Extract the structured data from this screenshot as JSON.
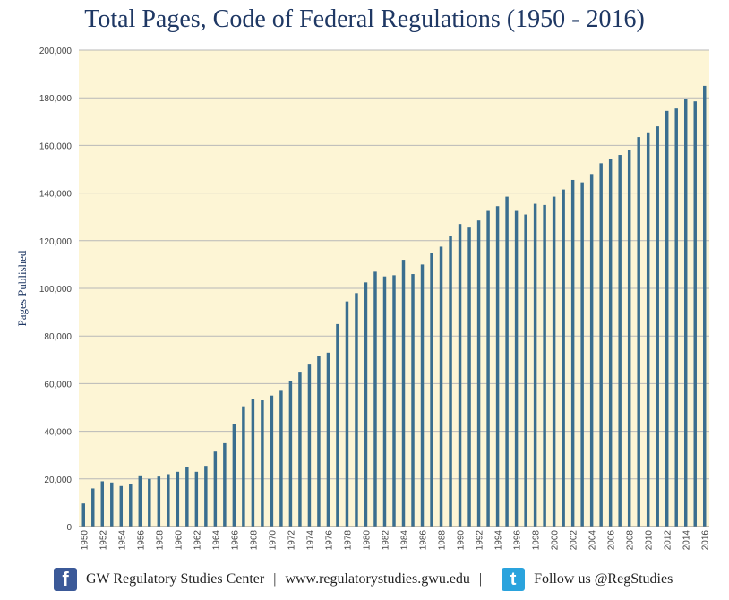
{
  "chart_data": {
    "type": "bar",
    "title": "Total Pages, Code of Federal Regulations (1950 - 2016)",
    "xlabel": "",
    "ylabel": "Pages Published",
    "ylim": [
      0,
      200000
    ],
    "yticks": [
      "0",
      "20,000",
      "40,000",
      "60,000",
      "80,000",
      "100,000",
      "120,000",
      "140,000",
      "160,000",
      "180,000",
      "200,000"
    ],
    "xtick_labels": [
      "1950",
      "1952",
      "1954",
      "1956",
      "1958",
      "1960",
      "1962",
      "1964",
      "1966",
      "1968",
      "1970",
      "1972",
      "1974",
      "1976",
      "1978",
      "1980",
      "1982",
      "1984",
      "1986",
      "1988",
      "1990",
      "1992",
      "1994",
      "1996",
      "1998",
      "2000",
      "2002",
      "2004",
      "2006",
      "2008",
      "2010",
      "2012",
      "2014",
      "2016"
    ],
    "categories": [
      "1950",
      "1951",
      "1952",
      "1953",
      "1954",
      "1955",
      "1956",
      "1957",
      "1958",
      "1959",
      "1960",
      "1961",
      "1962",
      "1963",
      "1964",
      "1965",
      "1966",
      "1967",
      "1968",
      "1969",
      "1970",
      "1971",
      "1972",
      "1973",
      "1974",
      "1975",
      "1976",
      "1977",
      "1978",
      "1979",
      "1980",
      "1981",
      "1982",
      "1983",
      "1984",
      "1985",
      "1986",
      "1987",
      "1988",
      "1989",
      "1990",
      "1991",
      "1992",
      "1993",
      "1994",
      "1995",
      "1996",
      "1997",
      "1998",
      "1999",
      "2000",
      "2001",
      "2002",
      "2003",
      "2004",
      "2005",
      "2006",
      "2007",
      "2008",
      "2009",
      "2010",
      "2011",
      "2012",
      "2013",
      "2014",
      "2015",
      "2016"
    ],
    "values": [
      9700,
      16000,
      19000,
      18500,
      17000,
      18000,
      21500,
      20000,
      21000,
      22000,
      23000,
      25000,
      23000,
      25500,
      31500,
      35000,
      43000,
      50500,
      53500,
      53000,
      55000,
      57000,
      61000,
      65000,
      68000,
      71500,
      73000,
      85000,
      94500,
      98000,
      102500,
      107000,
      105000,
      105500,
      112000,
      106000,
      110000,
      115000,
      117500,
      122000,
      127000,
      125500,
      128500,
      132500,
      134500,
      138500,
      132500,
      131000,
      135500,
      135000,
      138500,
      141500,
      145500,
      144500,
      148000,
      152500,
      154500,
      156000,
      158000,
      163500,
      165500,
      168000,
      174500,
      175500,
      179500,
      178500,
      185000
    ],
    "colors": {
      "bar": "#3a6e8f",
      "plot_bg": "#fdf5d5",
      "grid": "#b8b8b8",
      "title": "#1f3864"
    }
  },
  "footer": {
    "facebook_icon": "f",
    "org": "GW Regulatory Studies Center",
    "separator1": "|",
    "url": "www.regulatorystudies.gwu.edu",
    "separator2": "|",
    "twitter_icon": "t",
    "follow": "Follow us @RegStudies"
  }
}
